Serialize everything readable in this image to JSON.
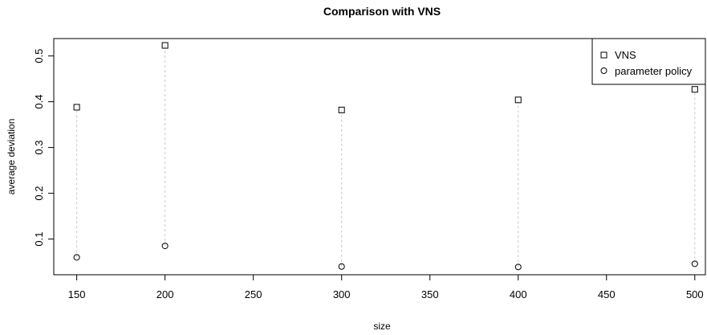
{
  "chart_data": {
    "type": "scatter",
    "title": "Comparison with VNS",
    "xlabel": "size",
    "ylabel": "average deviation",
    "xlim": [
      137,
      506
    ],
    "ylim": [
      0.022,
      0.538
    ],
    "xticks": [
      150,
      200,
      250,
      300,
      350,
      400,
      450,
      500
    ],
    "yticks": [
      0.1,
      0.2,
      0.3,
      0.4,
      0.5
    ],
    "x": [
      150,
      200,
      300,
      400,
      500
    ],
    "series": [
      {
        "name": "VNS",
        "marker": "square",
        "values": [
          0.388,
          0.523,
          0.382,
          0.404,
          0.427
        ]
      },
      {
        "name": "parameter policy",
        "marker": "circle",
        "values": [
          0.06,
          0.085,
          0.04,
          0.039,
          0.046
        ]
      }
    ],
    "connectors": {
      "style": "dashed",
      "color": "#c8c8c8"
    },
    "legend_position": "top-right",
    "grid": false
  }
}
